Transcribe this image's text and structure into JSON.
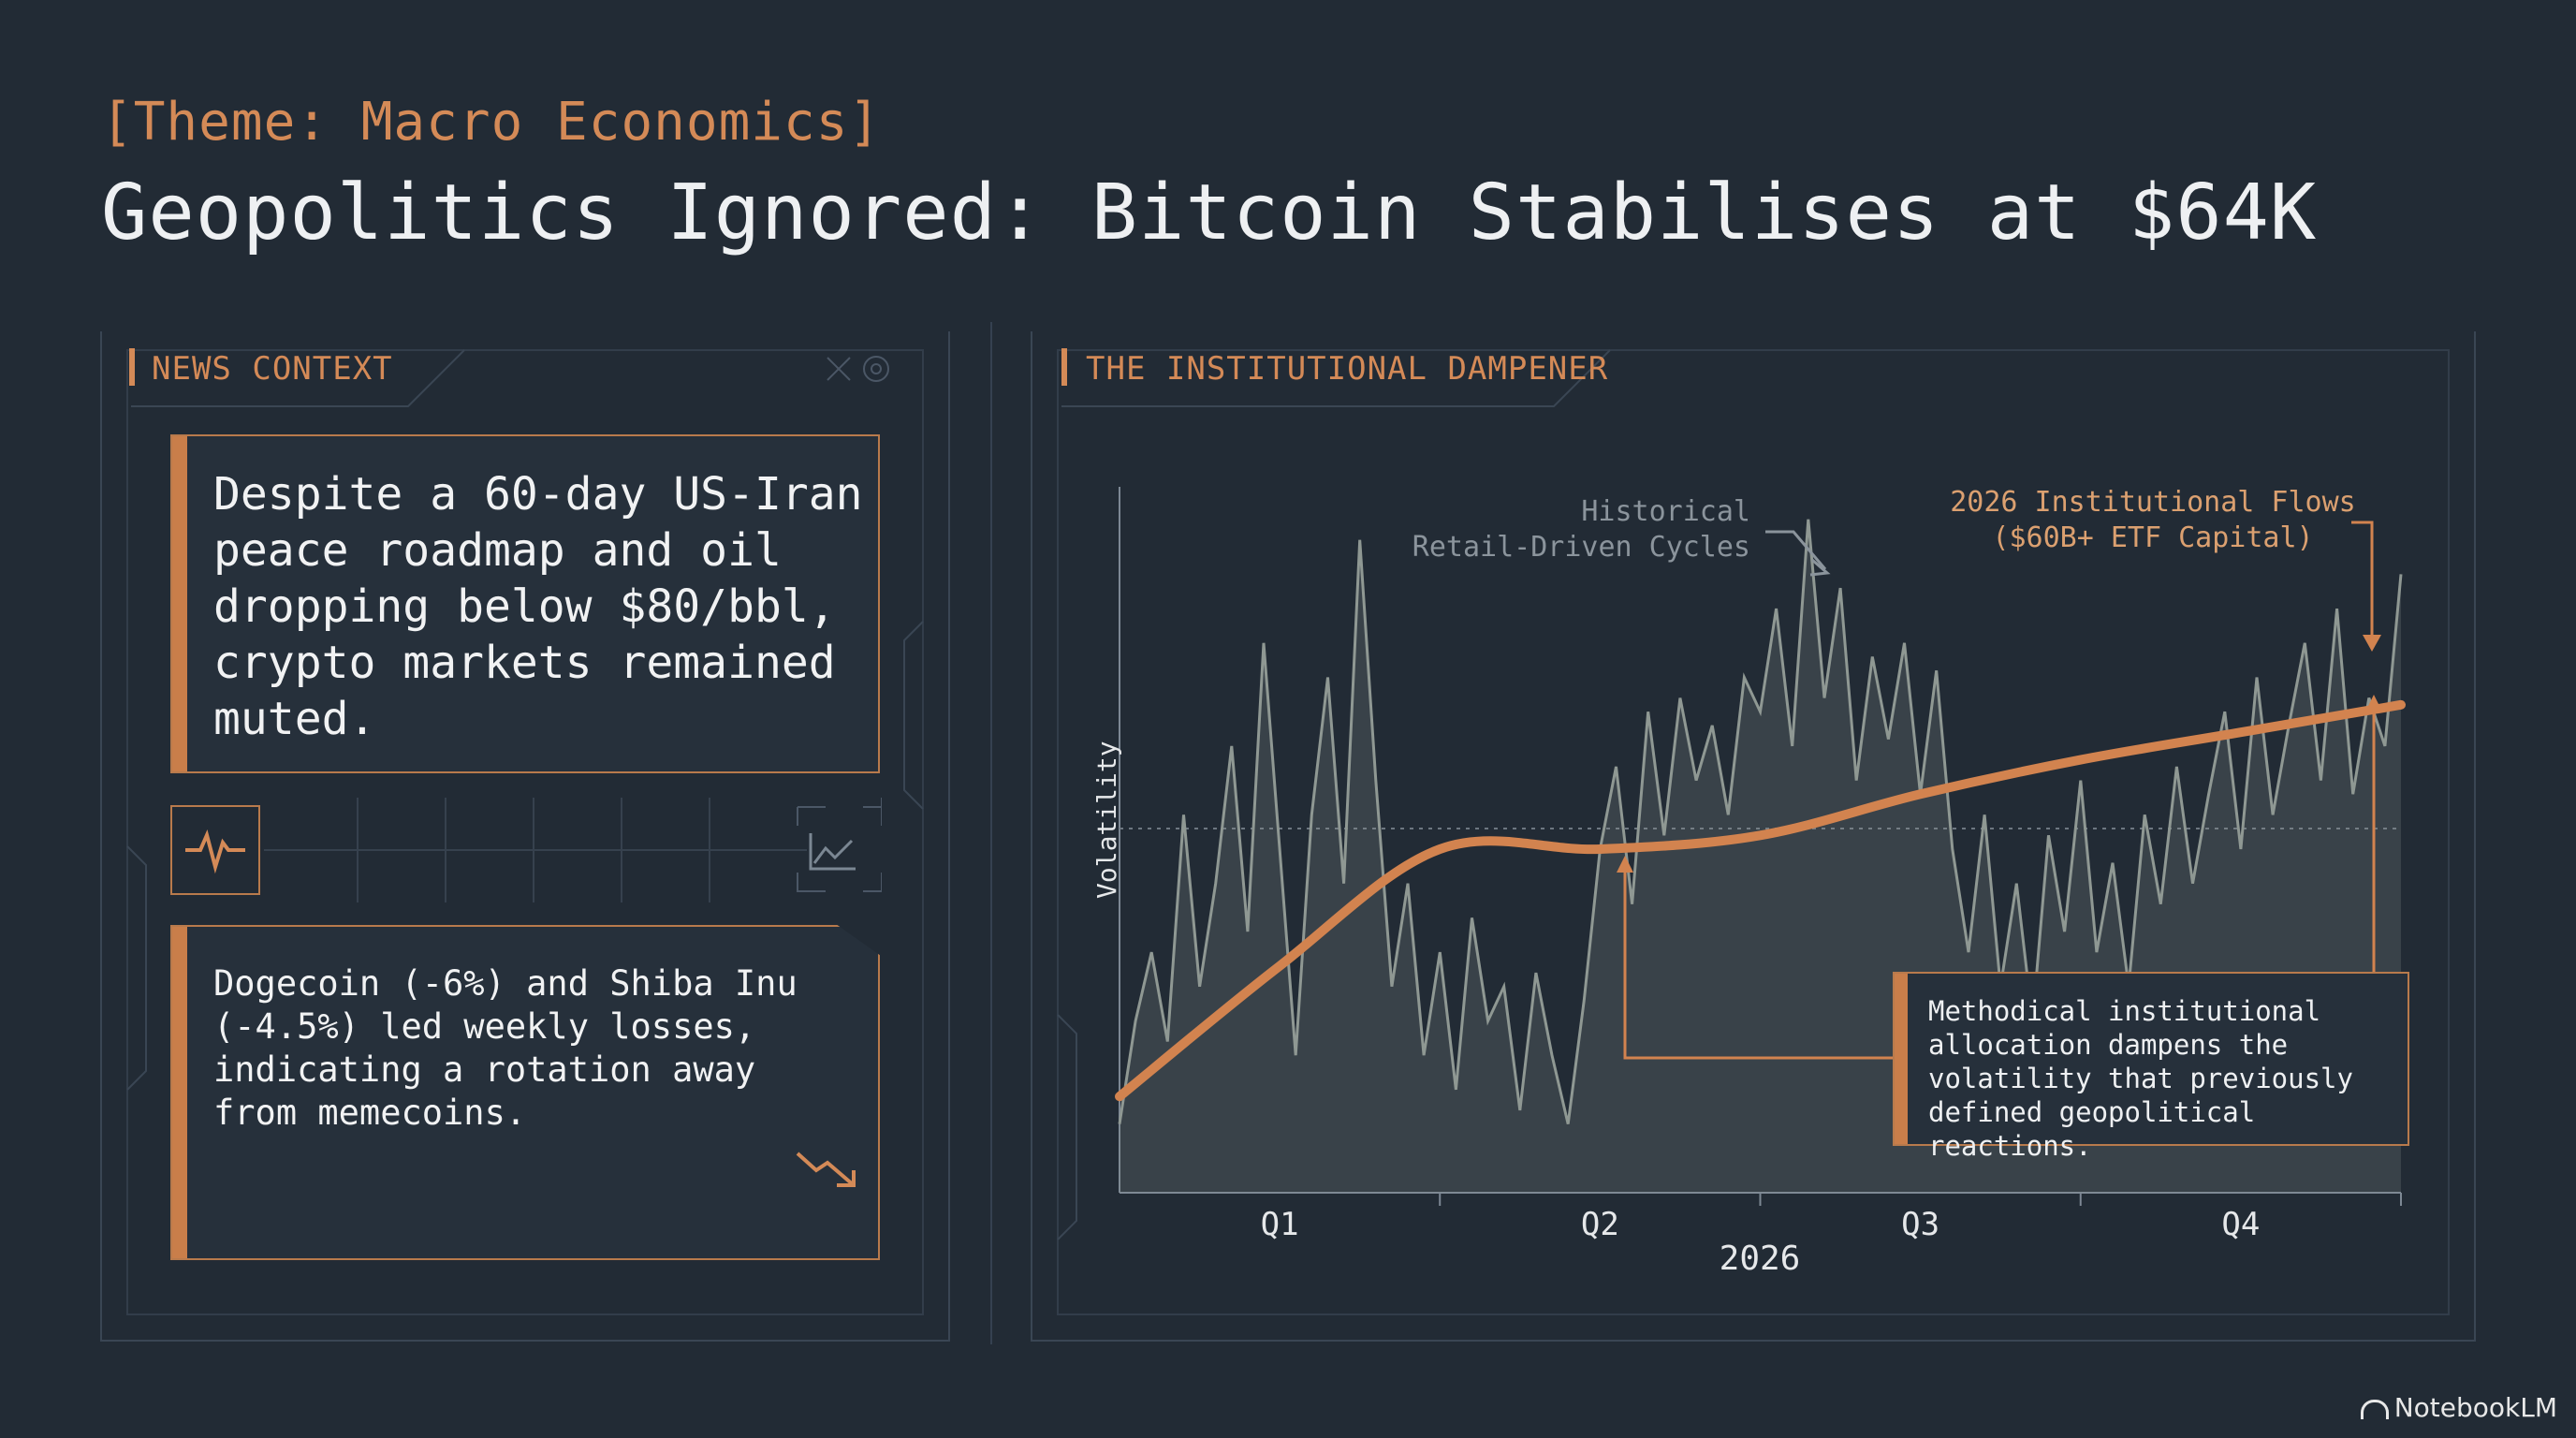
{
  "header": {
    "theme": "[Theme: Macro Economics]",
    "title": "Geopolitics Ignored: Bitcoin Stabilises at $64K"
  },
  "news_panel": {
    "heading": "NEWS CONTEXT",
    "card1_text": "Despite a 60-day US-Iran peace roadmap and oil dropping below $80/bbl, crypto markets remained muted.",
    "card2_text": "Dogecoin (-6%) and Shiba Inu (-4.5%) led weekly losses, indicating a rotation away from memecoins.",
    "icons": [
      "heartbeat-icon",
      "line-chart-icon",
      "trend-down-icon"
    ]
  },
  "chart_panel": {
    "heading": "THE INSTITUTIONAL DAMPENER",
    "annotation_retail": "Historical\nRetail-Driven Cycles",
    "annotation_institutional": "2026 Institutional Flows\n($60B+ ETF Capital)",
    "callout": "Methodical institutional allocation dampens the volatility that previously defined geopolitical reactions."
  },
  "chart_data": {
    "type": "line",
    "title": "THE INSTITUTIONAL DAMPENER",
    "xlabel": "2026",
    "ylabel": "Volatility",
    "x_ticks": [
      "Q1",
      "Q2",
      "Q3",
      "Q4"
    ],
    "xlim": [
      0,
      4
    ],
    "ylim": [
      0,
      1
    ],
    "grid": false,
    "series": [
      {
        "name": "Historical Retail-Driven Cycles",
        "color": "#8f9893",
        "x": [
          0,
          0.05,
          0.1,
          0.15,
          0.2,
          0.25,
          0.3,
          0.35,
          0.4,
          0.45,
          0.5,
          0.55,
          0.6,
          0.65,
          0.7,
          0.75,
          0.8,
          0.85,
          0.9,
          0.95,
          1.0,
          1.05,
          1.1,
          1.15,
          1.2,
          1.25,
          1.3,
          1.35,
          1.4,
          1.45,
          1.5,
          1.55,
          1.6,
          1.65,
          1.7,
          1.75,
          1.8,
          1.85,
          1.9,
          1.95,
          2.0,
          2.05,
          2.1,
          2.15,
          2.2,
          2.25,
          2.3,
          2.35,
          2.4,
          2.45,
          2.5,
          2.55,
          2.6,
          2.65,
          2.7,
          2.75,
          2.8,
          2.85,
          2.9,
          2.95,
          3.0,
          3.05,
          3.1,
          3.15,
          3.2,
          3.25,
          3.3,
          3.35,
          3.4,
          3.45,
          3.5,
          3.55,
          3.6,
          3.65,
          3.7,
          3.75,
          3.8,
          3.85,
          3.9,
          3.95,
          4.0
        ],
        "values": [
          0.1,
          0.25,
          0.35,
          0.22,
          0.55,
          0.3,
          0.45,
          0.65,
          0.38,
          0.8,
          0.5,
          0.2,
          0.55,
          0.75,
          0.45,
          0.95,
          0.6,
          0.3,
          0.45,
          0.2,
          0.35,
          0.15,
          0.4,
          0.25,
          0.3,
          0.12,
          0.32,
          0.2,
          0.1,
          0.28,
          0.5,
          0.62,
          0.42,
          0.7,
          0.52,
          0.72,
          0.6,
          0.68,
          0.55,
          0.75,
          0.7,
          0.85,
          0.65,
          0.98,
          0.72,
          0.88,
          0.6,
          0.78,
          0.66,
          0.8,
          0.58,
          0.76,
          0.5,
          0.35,
          0.55,
          0.3,
          0.45,
          0.25,
          0.52,
          0.38,
          0.6,
          0.35,
          0.48,
          0.3,
          0.55,
          0.42,
          0.62,
          0.45,
          0.58,
          0.7,
          0.5,
          0.75,
          0.55,
          0.68,
          0.8,
          0.6,
          0.85,
          0.58,
          0.72,
          0.65,
          0.9
        ]
      },
      {
        "name": "2026 Institutional Flows ($60B+ ETF Capital)",
        "color": "#d2834f",
        "x": [
          0,
          0.5,
          1.0,
          1.5,
          2.0,
          2.5,
          3.0,
          3.5,
          4.0
        ],
        "values": [
          0.14,
          0.33,
          0.5,
          0.5,
          0.52,
          0.58,
          0.63,
          0.67,
          0.71
        ]
      }
    ],
    "annotations": [
      "Historical Retail-Driven Cycles",
      "2026 Institutional Flows ($60B+ ETF Capital)",
      "Methodical institutional allocation dampens the volatility that previously defined geopolitical reactions."
    ],
    "reference_line_y": 0.53
  },
  "branding": {
    "label": "NotebookLM"
  },
  "colors": {
    "background": "#222b35",
    "accent": "#d48a57",
    "retail_series": "#8f9893"
  }
}
